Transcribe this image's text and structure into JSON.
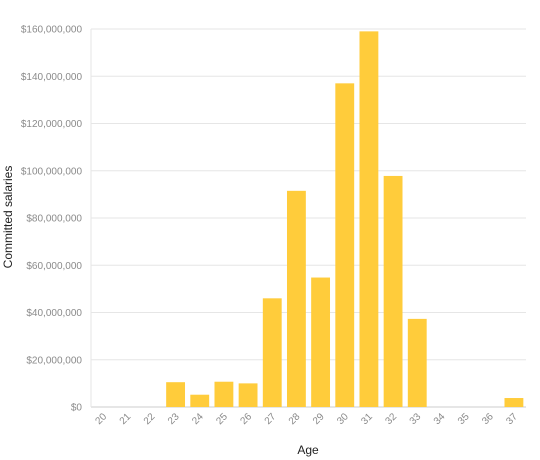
{
  "chart_data": {
    "type": "bar",
    "xlabel": "Age",
    "ylabel": "Committed salaries",
    "categories": [
      "20",
      "21",
      "22",
      "23",
      "24",
      "25",
      "26",
      "27",
      "28",
      "29",
      "30",
      "31",
      "32",
      "33",
      "34",
      "35",
      "36",
      "37"
    ],
    "values": [
      0,
      0,
      0,
      10500000,
      5200000,
      10700000,
      10000000,
      46000000,
      91500000,
      54800000,
      137000000,
      159000000,
      97800000,
      37300000,
      0,
      0,
      0,
      3800000
    ],
    "ylim": [
      0,
      160000000
    ],
    "yticks": [
      0,
      20000000,
      40000000,
      60000000,
      80000000,
      100000000,
      120000000,
      140000000,
      160000000
    ],
    "ytick_labels": [
      "$0",
      "$20,000,000",
      "$40,000,000",
      "$60,000,000",
      "$80,000,000",
      "$100,000,000",
      "$120,000,000",
      "$140,000,000",
      "$160,000,000"
    ],
    "grid": true,
    "bar_color": "#FFCC3B"
  }
}
